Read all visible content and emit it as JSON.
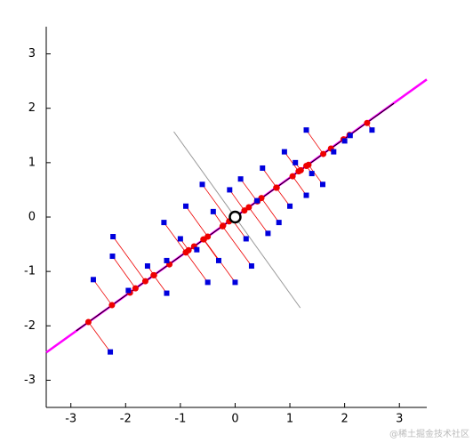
{
  "chart_data": {
    "type": "scatter",
    "xlim": [
      -3.45,
      3.5
    ],
    "ylim": [
      -3.5,
      3.5
    ],
    "xticks": [
      -3,
      -2,
      -1,
      0,
      1,
      2,
      3
    ],
    "yticks": [
      -3,
      -2,
      -1,
      0,
      1,
      2,
      3
    ],
    "lines": [
      {
        "color": "#ff00ff",
        "x": [
          -3.45,
          3.5
        ],
        "y": [
          -2.49,
          2.53
        ]
      },
      {
        "color": "#000000",
        "x": [
          -2.9,
          2.9
        ],
        "y": [
          -2.09,
          2.09
        ]
      },
      {
        "color": "#999999",
        "x": [
          -1.12,
          1.19
        ],
        "y": [
          1.57,
          -1.67
        ]
      }
    ],
    "points": {
      "color": "#0000dd",
      "x": [
        -2.59,
        -2.23,
        -2.24,
        -2.28,
        -1.95,
        -1.6,
        -1.3,
        -1.25,
        -1.0,
        -0.9,
        -0.7,
        -0.6,
        -0.5,
        -0.4,
        -0.3,
        -0.1,
        0.0,
        0.1,
        0.2,
        0.3,
        0.4,
        0.5,
        0.6,
        0.8,
        0.9,
        1.0,
        1.1,
        1.3,
        1.3,
        1.4,
        1.6,
        1.8,
        2.0,
        2.1,
        2.5,
        -1.25
      ],
      "y": [
        -1.15,
        -0.36,
        -0.72,
        -2.48,
        -1.35,
        -0.9,
        -0.1,
        -1.4,
        -0.4,
        0.2,
        -0.6,
        0.6,
        -1.2,
        0.1,
        -0.8,
        0.5,
        -1.2,
        0.7,
        -0.4,
        -0.9,
        0.3,
        0.9,
        -0.3,
        -0.1,
        1.2,
        0.2,
        1.0,
        0.4,
        1.6,
        0.8,
        0.6,
        1.2,
        1.4,
        1.5,
        1.6,
        -0.8
      ]
    },
    "projections": {
      "color": "#ee0000",
      "x": [
        -2.25,
        -1.64,
        -1.82,
        -2.68,
        -1.92,
        -1.48,
        -0.9,
        -1.49,
        -0.85,
        -0.5,
        -0.75,
        -0.11,
        -0.9,
        -0.22,
        -0.58,
        0.17,
        -0.57,
        0.4,
        -0.06,
        -0.23,
        0.41,
        0.76,
        0.25,
        0.48,
        1.16,
        0.75,
        1.2,
        1.05,
        1.61,
        1.3,
        1.34,
        1.75,
        1.98,
        2.09,
        2.41,
        -1.2
      ],
      "y": [
        -1.62,
        -1.18,
        -1.31,
        -1.93,
        -1.39,
        -1.07,
        -0.65,
        -1.07,
        -0.61,
        -0.36,
        -0.54,
        -0.08,
        -0.65,
        -0.16,
        -0.41,
        0.12,
        -0.41,
        0.29,
        -0.04,
        -0.17,
        0.29,
        0.54,
        0.18,
        0.35,
        0.84,
        0.54,
        0.86,
        0.75,
        1.16,
        0.94,
        0.96,
        1.26,
        1.43,
        1.51,
        1.73,
        -0.87
      ]
    },
    "mean": {
      "x": 0,
      "y": 0
    },
    "watermark": "@稀土掘金技术社区"
  }
}
